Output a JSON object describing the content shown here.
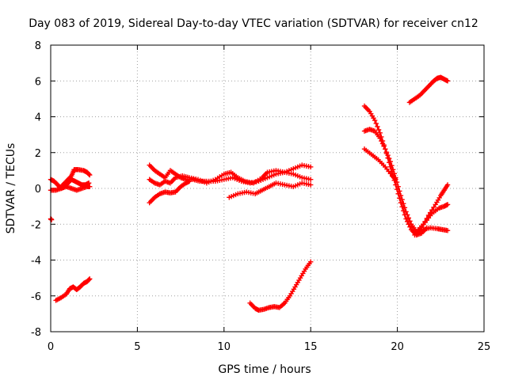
{
  "chart_data": {
    "type": "scatter",
    "title": "Day 083 of 2019, Sidereal Day-to-day VTEC variation (SDTVAR) for receiver cn12",
    "xlabel": "GPS time / hours",
    "ylabel": "SDTVAR / TECUs",
    "xlim": [
      0,
      25
    ],
    "ylim": [
      -8,
      8
    ],
    "xticks": [
      0,
      5,
      10,
      15,
      20,
      25
    ],
    "yticks": [
      -8,
      -6,
      -4,
      -2,
      0,
      2,
      4,
      6,
      8
    ],
    "grid": true,
    "marker": "plus",
    "color": "#ff0000",
    "series": [
      {
        "x": [
          0.0,
          0.05
        ],
        "y": [
          -1.7,
          -1.75
        ]
      },
      {
        "x": [
          0.0,
          0.2,
          0.4,
          0.6,
          0.8,
          1.0,
          1.2,
          1.4,
          1.6,
          1.8,
          2.0,
          2.2
        ],
        "y": [
          0.5,
          0.4,
          0.2,
          0.0,
          0.1,
          0.3,
          0.5,
          0.4,
          0.3,
          0.2,
          0.2,
          0.3
        ]
      },
      {
        "x": [
          0.0,
          0.3,
          0.6,
          0.9,
          1.2,
          1.5,
          1.8,
          2.1,
          2.25
        ],
        "y": [
          -0.1,
          -0.1,
          0.0,
          0.1,
          0.0,
          -0.1,
          0.0,
          0.1,
          0.1
        ]
      },
      {
        "x": [
          0.6,
          0.9,
          1.2,
          1.35,
          1.6,
          1.9,
          2.1,
          2.25
        ],
        "y": [
          0.1,
          0.4,
          0.7,
          1.05,
          1.05,
          1.0,
          0.9,
          0.75
        ]
      },
      {
        "x": [
          0.3,
          0.6,
          0.9,
          1.1,
          1.3,
          1.5,
          1.7,
          1.9,
          2.1,
          2.25
        ],
        "y": [
          -6.25,
          -6.1,
          -5.9,
          -5.6,
          -5.5,
          -5.65,
          -5.5,
          -5.3,
          -5.2,
          -5.05
        ]
      },
      {
        "x": [
          5.7,
          6.0,
          6.3,
          6.6,
          6.9,
          7.2,
          7.5,
          7.8,
          8.2,
          8.6,
          9.0,
          9.5,
          10.0,
          10.5,
          11.0,
          11.5,
          12.0,
          12.5,
          13.0,
          13.5,
          14.0,
          14.5,
          15.0
        ],
        "y": [
          1.3,
          1.0,
          0.8,
          0.6,
          1.0,
          0.8,
          0.6,
          0.5,
          0.5,
          0.4,
          0.4,
          0.4,
          0.5,
          0.6,
          0.4,
          0.3,
          0.4,
          0.6,
          0.8,
          0.9,
          1.1,
          1.3,
          1.2
        ]
      },
      {
        "x": [
          5.7,
          6.0,
          6.3,
          6.6,
          6.9,
          7.2,
          7.6,
          8.0,
          8.5,
          9.0,
          9.5,
          10.0,
          10.4,
          10.8,
          11.2,
          11.7,
          12.2,
          12.5,
          13.0,
          13.5,
          14.0,
          14.5,
          15.0
        ],
        "y": [
          0.5,
          0.3,
          0.2,
          0.4,
          0.3,
          0.6,
          0.7,
          0.6,
          0.5,
          0.3,
          0.5,
          0.8,
          0.9,
          0.6,
          0.4,
          0.3,
          0.6,
          0.9,
          1.0,
          0.9,
          0.8,
          0.6,
          0.5
        ]
      },
      {
        "x": [
          5.7,
          6.0,
          6.3,
          6.6,
          6.9,
          7.2,
          7.5,
          7.8,
          8.0
        ],
        "y": [
          -0.8,
          -0.5,
          -0.3,
          -0.2,
          -0.25,
          -0.2,
          0.1,
          0.3,
          0.4
        ]
      },
      {
        "x": [
          10.3,
          10.8,
          11.3,
          11.8,
          12.2,
          12.6,
          13.0,
          13.5,
          14.0,
          14.5,
          15.0
        ],
        "y": [
          -0.5,
          -0.3,
          -0.2,
          -0.3,
          -0.1,
          0.1,
          0.3,
          0.2,
          0.1,
          0.3,
          0.2
        ]
      },
      {
        "x": [
          11.5,
          11.8,
          12.0,
          12.3,
          12.6,
          12.9,
          13.2,
          13.5,
          13.8,
          14.1,
          14.4,
          14.7,
          15.0
        ],
        "y": [
          -6.4,
          -6.7,
          -6.8,
          -6.75,
          -6.65,
          -6.6,
          -6.65,
          -6.4,
          -6.0,
          -5.5,
          -5.0,
          -4.5,
          -4.1
        ]
      },
      {
        "x": [
          18.1,
          18.4,
          18.7,
          19.0,
          19.3,
          19.6,
          19.9,
          20.2,
          20.5,
          20.8,
          21.1,
          21.4,
          21.7
        ],
        "y": [
          4.6,
          4.3,
          3.8,
          3.1,
          2.2,
          1.2,
          0.2,
          -0.8,
          -1.7,
          -2.3,
          -2.6,
          -2.5,
          -2.2
        ]
      },
      {
        "x": [
          18.1,
          18.4,
          18.7,
          19.0,
          19.3,
          19.6,
          19.9,
          20.2,
          20.5,
          20.8,
          21.1,
          21.5,
          21.9,
          22.3,
          22.6,
          22.9
        ],
        "y": [
          3.2,
          3.3,
          3.2,
          2.8,
          2.2,
          1.5,
          0.6,
          -0.4,
          -1.3,
          -2.0,
          -2.4,
          -2.3,
          -2.2,
          -2.25,
          -2.3,
          -2.35
        ]
      },
      {
        "x": [
          18.1,
          18.5,
          18.9,
          19.3,
          19.7,
          19.9
        ],
        "y": [
          2.2,
          1.9,
          1.6,
          1.2,
          0.7,
          0.5
        ]
      },
      {
        "x": [
          21.0,
          21.4,
          21.8,
          22.2,
          22.5,
          22.7,
          22.9
        ],
        "y": [
          -2.6,
          -2.2,
          -1.5,
          -0.9,
          -0.4,
          -0.1,
          0.2
        ]
      },
      {
        "x": [
          21.2,
          21.6,
          22.0,
          22.4,
          22.7,
          22.9
        ],
        "y": [
          -2.3,
          -1.9,
          -1.4,
          -1.1,
          -1.0,
          -0.9
        ]
      },
      {
        "x": [
          20.7,
          21.0,
          21.3,
          21.6,
          21.9,
          22.1,
          22.3,
          22.5,
          22.7,
          22.9
        ],
        "y": [
          4.8,
          5.0,
          5.2,
          5.5,
          5.8,
          6.0,
          6.15,
          6.2,
          6.1,
          6.0
        ]
      }
    ]
  }
}
